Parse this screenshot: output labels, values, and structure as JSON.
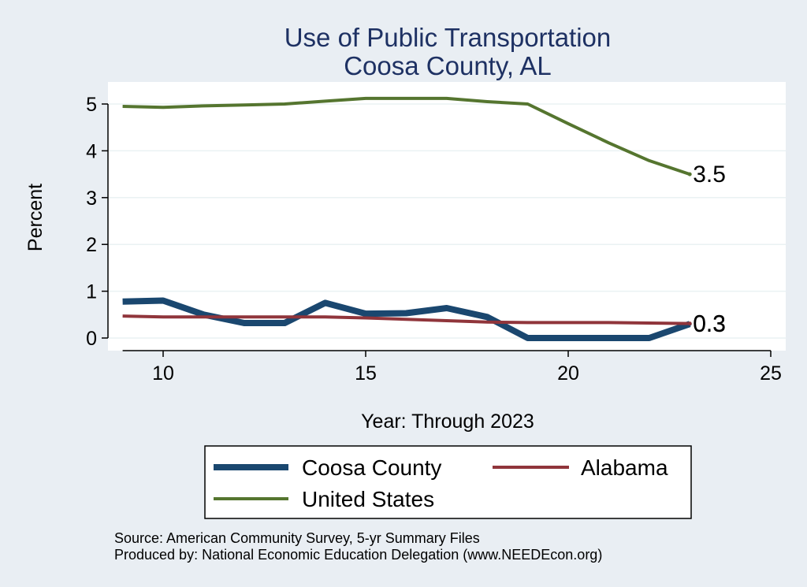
{
  "chart_data": {
    "type": "line",
    "title": "Use of Public Transportation",
    "subtitle": "Coosa County, AL",
    "xlabel": "Year: Through 2023",
    "ylabel": "Percent",
    "xlim": [
      9,
      25
    ],
    "ylim": [
      0,
      5.2
    ],
    "xticks": [
      10,
      15,
      20,
      25
    ],
    "yticks": [
      0,
      1,
      2,
      3,
      4,
      5
    ],
    "grid": true,
    "legend_position": "bottom",
    "series": [
      {
        "name": "Coosa County",
        "color": "#1a476f",
        "x": [
          9,
          10,
          11,
          12,
          13,
          14,
          15,
          16,
          17,
          18,
          19,
          20,
          21,
          22,
          23
        ],
        "values": [
          0.78,
          0.8,
          0.5,
          0.32,
          0.32,
          0.75,
          0.52,
          0.53,
          0.64,
          0.45,
          0.0,
          0.0,
          0.0,
          0.0,
          0.3
        ],
        "end_label": "0.3"
      },
      {
        "name": "Alabama",
        "color": "#90353b",
        "x": [
          9,
          10,
          11,
          12,
          13,
          14,
          15,
          16,
          17,
          18,
          19,
          20,
          21,
          22,
          23
        ],
        "values": [
          0.47,
          0.45,
          0.45,
          0.45,
          0.45,
          0.45,
          0.43,
          0.4,
          0.37,
          0.34,
          0.33,
          0.33,
          0.33,
          0.32,
          0.31
        ],
        "end_label": "0.3"
      },
      {
        "name": "United States",
        "color": "#55752f",
        "x": [
          9,
          10,
          11,
          12,
          13,
          14,
          15,
          16,
          17,
          18,
          19,
          20,
          21,
          22,
          23
        ],
        "values": [
          4.95,
          4.93,
          4.96,
          4.98,
          5.0,
          5.06,
          5.12,
          5.12,
          5.12,
          5.05,
          5.0,
          4.58,
          4.17,
          3.79,
          3.5
        ],
        "end_label": "3.5"
      }
    ],
    "notes": [
      "Source: American Community Survey, 5-yr Summary Files",
      "Produced by: National Economic Education Delegation (www.NEEDEcon.org)"
    ]
  }
}
